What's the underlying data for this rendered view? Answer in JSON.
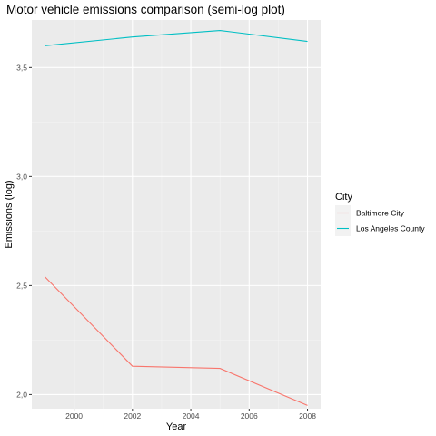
{
  "chart_data": {
    "type": "line",
    "title": "Motor vehicle emissions comparison (semi-log plot)",
    "xlabel": "Year",
    "ylabel": "Emissions (log)",
    "x": [
      1999,
      2002,
      2005,
      2008
    ],
    "series": [
      {
        "name": "Baltimore City",
        "color": "#F8766D",
        "values": [
          2.54,
          2.13,
          2.12,
          1.95
        ]
      },
      {
        "name": "Los Angeles County",
        "color": "#00BFC4",
        "values": [
          3.6,
          3.64,
          3.67,
          3.62
        ]
      }
    ],
    "xlim": [
      1998.55,
      2008.45
    ],
    "ylim": [
      1.935,
      3.718
    ],
    "x_ticks": [
      2000,
      2002,
      2004,
      2006,
      2008
    ],
    "x_tick_labels": [
      "2000",
      "2002",
      "2004",
      "2006",
      "2008"
    ],
    "y_ticks": [
      2.0,
      2.5,
      3.0,
      3.5
    ],
    "y_tick_labels": [
      "2,0",
      "2,5",
      "3,0",
      "3,5"
    ],
    "grid": true,
    "legend": {
      "title": "City",
      "position": "right"
    },
    "colors": {
      "panel": "#EBEBEB",
      "grid_major": "#FFFFFF",
      "grid_minor": "#F5F5F5"
    }
  }
}
